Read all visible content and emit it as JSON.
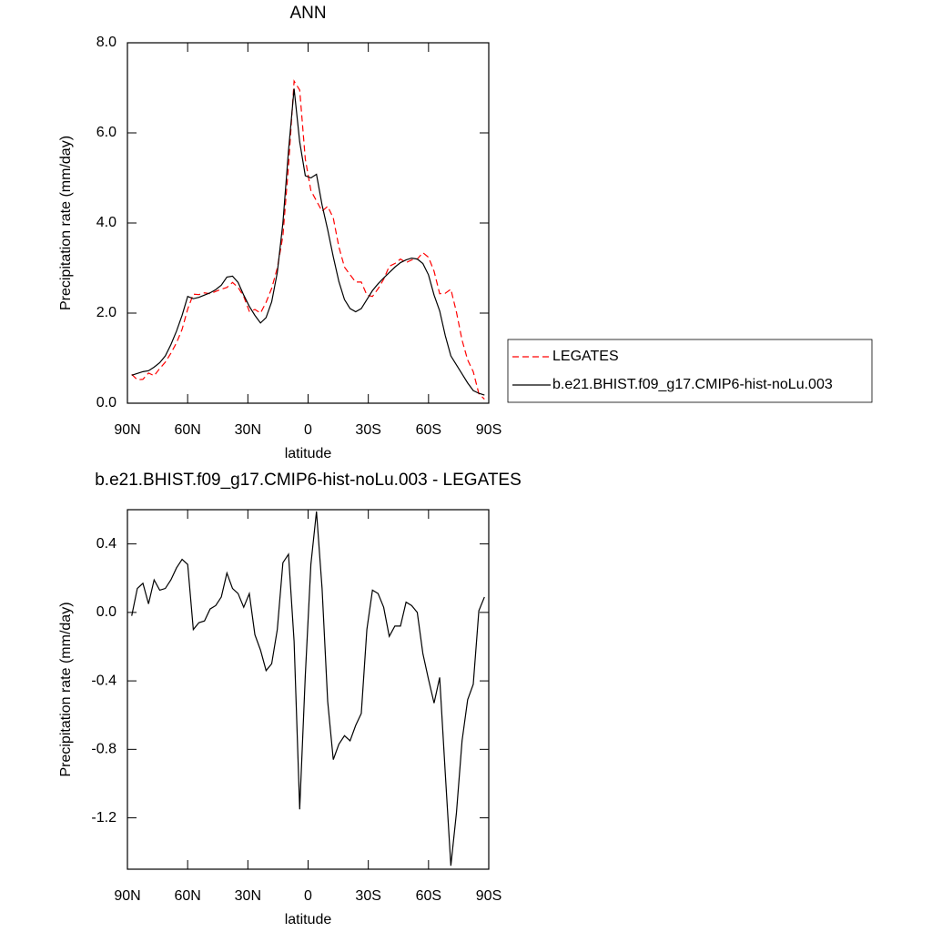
{
  "chart_data": [
    {
      "type": "line",
      "title": "ANN",
      "xlabel": "latitude",
      "ylabel": "Precipitation rate (mm/day)",
      "x": [
        87.86,
        85.07,
        82.28,
        79.49,
        76.7,
        73.91,
        71.12,
        68.34,
        65.55,
        62.76,
        59.97,
        57.18,
        54.39,
        51.6,
        48.81,
        46.02,
        43.23,
        40.44,
        37.65,
        34.86,
        32.07,
        29.28,
        26.5,
        23.71,
        20.92,
        18.13,
        15.34,
        12.55,
        9.76,
        6.97,
        4.18,
        1.39,
        -1.39,
        -4.18,
        -6.97,
        -9.76,
        -12.55,
        -15.34,
        -18.13,
        -20.92,
        -23.71,
        -26.5,
        -29.28,
        -32.07,
        -34.86,
        -37.65,
        -40.44,
        -43.23,
        -46.02,
        -48.81,
        -51.6,
        -54.39,
        -57.18,
        -59.97,
        -62.76,
        -65.55,
        -68.34,
        -71.12,
        -73.91,
        -76.7,
        -79.49,
        -82.28,
        -85.07,
        -87.86
      ],
      "series": [
        {
          "name": "LEGATES",
          "color": "#ff0000",
          "line_style": "dashed",
          "values": [
            0.64,
            0.52,
            0.53,
            0.67,
            0.61,
            0.77,
            0.91,
            1.11,
            1.34,
            1.64,
            2.09,
            2.42,
            2.41,
            2.45,
            2.43,
            2.48,
            2.53,
            2.57,
            2.68,
            2.57,
            2.37,
            2.04,
            2.08,
            2.0,
            2.24,
            2.55,
            3.0,
            3.71,
            5.26,
            7.15,
            6.95,
            5.42,
            4.72,
            4.49,
            4.26,
            4.37,
            4.11,
            3.47,
            3.02,
            2.85,
            2.69,
            2.69,
            2.4,
            2.37,
            2.54,
            2.75,
            3.04,
            3.1,
            3.2,
            3.12,
            3.18,
            3.2,
            3.34,
            3.24,
            2.93,
            2.43,
            2.44,
            2.53,
            2.02,
            1.4,
            0.96,
            0.7,
            0.21,
            0.09
          ]
        },
        {
          "name": "b.e21.BHIST.f09_g17.CMIP6-hist-noLu.003",
          "color": "#000000",
          "line_style": "solid",
          "values": [
            0.62,
            0.66,
            0.7,
            0.72,
            0.8,
            0.9,
            1.05,
            1.3,
            1.6,
            1.95,
            2.37,
            2.32,
            2.35,
            2.4,
            2.45,
            2.52,
            2.62,
            2.8,
            2.82,
            2.68,
            2.4,
            2.15,
            1.95,
            1.78,
            1.9,
            2.25,
            2.9,
            4.0,
            5.6,
            6.98,
            5.8,
            5.05,
            5.0,
            5.08,
            4.4,
            3.85,
            3.25,
            2.7,
            2.3,
            2.1,
            2.03,
            2.1,
            2.3,
            2.5,
            2.65,
            2.78,
            2.9,
            3.02,
            3.12,
            3.18,
            3.22,
            3.2,
            3.1,
            2.85,
            2.4,
            2.05,
            1.5,
            1.05,
            0.85,
            0.65,
            0.45,
            0.28,
            0.22,
            0.18
          ]
        }
      ],
      "xlim": [
        90,
        -90
      ],
      "xticks": [
        {
          "value": 90,
          "label": "90N"
        },
        {
          "value": 60,
          "label": "60N"
        },
        {
          "value": 30,
          "label": "30N"
        },
        0,
        {
          "value": -30,
          "label": "30S"
        },
        {
          "value": -60,
          "label": "60S"
        },
        {
          "value": -90,
          "label": "90S"
        }
      ],
      "ylim": [
        0,
        8
      ],
      "yticks": [
        {
          "value": 0,
          "label": "0.0"
        },
        {
          "value": 2,
          "label": "2.0"
        },
        {
          "value": 4,
          "label": "4.0"
        },
        {
          "value": 6,
          "label": "6.0"
        },
        {
          "value": 8,
          "label": "8.0"
        }
      ],
      "legend": "right"
    },
    {
      "type": "line",
      "title": "b.e21.BHIST.f09_g17.CMIP6-hist-noLu.003 - LEGATES",
      "xlabel": "latitude",
      "ylabel": "Precipitation rate (mm/day)",
      "x": [
        87.86,
        85.07,
        82.28,
        79.49,
        76.7,
        73.91,
        71.12,
        68.34,
        65.55,
        62.76,
        59.97,
        57.18,
        54.39,
        51.6,
        48.81,
        46.02,
        43.23,
        40.44,
        37.65,
        34.86,
        32.07,
        29.28,
        26.5,
        23.71,
        20.92,
        18.13,
        15.34,
        12.55,
        9.76,
        6.97,
        4.18,
        1.39,
        -1.39,
        -4.18,
        -6.97,
        -9.76,
        -12.55,
        -15.34,
        -18.13,
        -20.92,
        -23.71,
        -26.5,
        -29.28,
        -32.07,
        -34.86,
        -37.65,
        -40.44,
        -43.23,
        -46.02,
        -48.81,
        -51.6,
        -54.39,
        -57.18,
        -59.97,
        -62.76,
        -65.55,
        -68.34,
        -71.12,
        -73.91,
        -76.7,
        -79.49,
        -82.28,
        -85.07,
        -87.86
      ],
      "color": "#000000",
      "values": [
        -0.02,
        0.14,
        0.17,
        0.05,
        0.19,
        0.13,
        0.14,
        0.19,
        0.26,
        0.31,
        0.28,
        -0.1,
        -0.06,
        -0.05,
        0.02,
        0.04,
        0.09,
        0.23,
        0.14,
        0.11,
        0.03,
        0.11,
        -0.13,
        -0.22,
        -0.34,
        -0.3,
        -0.1,
        0.29,
        0.34,
        -0.17,
        -1.15,
        -0.37,
        0.28,
        0.59,
        0.14,
        -0.52,
        -0.86,
        -0.77,
        -0.72,
        -0.75,
        -0.66,
        -0.59,
        -0.1,
        0.13,
        0.11,
        0.03,
        -0.14,
        -0.08,
        -0.08,
        0.06,
        0.04,
        0.0,
        -0.24,
        -0.39,
        -0.53,
        -0.38,
        -0.94,
        -1.48,
        -1.17,
        -0.75,
        -0.51,
        -0.42,
        0.01,
        0.09
      ],
      "xlim": [
        90,
        -90
      ],
      "xticks": [
        {
          "value": 90,
          "label": "90N"
        },
        {
          "value": 60,
          "label": "60N"
        },
        {
          "value": 30,
          "label": "30N"
        },
        0,
        {
          "value": -30,
          "label": "30S"
        },
        {
          "value": -60,
          "label": "60S"
        },
        {
          "value": -90,
          "label": "90S"
        }
      ],
      "ylim": [
        -1.5,
        0.6
      ],
      "yticks": [
        -1.2,
        -0.8,
        -0.4,
        {
          "value": 0,
          "label": "0.0"
        },
        0.4
      ]
    }
  ]
}
